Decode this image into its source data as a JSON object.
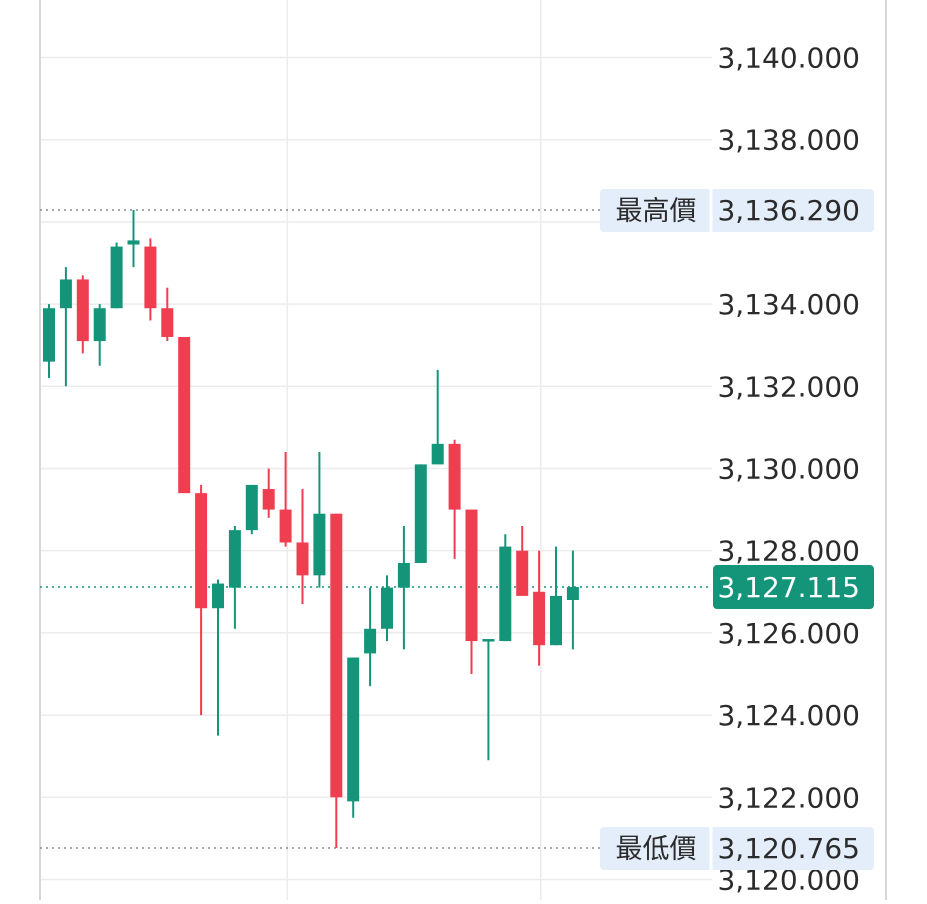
{
  "chart_data": {
    "type": "candlestick",
    "y_axis_side": "right",
    "grid": true,
    "ylim": [
      3119.5,
      3141.4
    ],
    "y_ticks": [
      3140,
      3138,
      3134,
      3132,
      3130,
      3128,
      3126,
      3124,
      3122,
      3120
    ],
    "y_tick_labels": [
      "3,140.000",
      "3,138.000",
      "3,134.000",
      "3,132.000",
      "3,130.000",
      "3,128.000",
      "3,126.000",
      "3,124.000",
      "3,122.000",
      "3,120.000"
    ],
    "high_marker": {
      "label": "最高價",
      "value": 3136.29,
      "value_text": "3,136.290"
    },
    "low_marker": {
      "label": "最低價",
      "value": 3120.765,
      "value_text": "3,120.765"
    },
    "last_price": {
      "value": 3127.115,
      "value_text": "3,127.115"
    },
    "colors": {
      "up": "#14957a",
      "down": "#ef3e4f",
      "grid": "#ececec",
      "axis": "#d6d6d6",
      "marker_bg": "#e4eefb",
      "last_bg": "#14957a"
    },
    "candles": [
      {
        "open": 3132.6,
        "high": 3134.0,
        "low": 3132.2,
        "close": 3133.9
      },
      {
        "open": 3133.9,
        "high": 3134.9,
        "low": 3132.0,
        "close": 3134.6
      },
      {
        "open": 3134.6,
        "high": 3134.7,
        "low": 3132.8,
        "close": 3133.1
      },
      {
        "open": 3133.1,
        "high": 3134.0,
        "low": 3132.5,
        "close": 3133.9
      },
      {
        "open": 3133.9,
        "high": 3135.5,
        "low": 3133.9,
        "close": 3135.4
      },
      {
        "open": 3135.45,
        "high": 3136.29,
        "low": 3134.9,
        "close": 3135.55
      },
      {
        "open": 3135.4,
        "high": 3135.6,
        "low": 3133.6,
        "close": 3133.9
      },
      {
        "open": 3133.9,
        "high": 3134.4,
        "low": 3133.1,
        "close": 3133.2
      },
      {
        "open": 3133.2,
        "high": 3133.2,
        "low": 3129.4,
        "close": 3129.4
      },
      {
        "open": 3129.4,
        "high": 3129.6,
        "low": 3124.0,
        "close": 3126.6
      },
      {
        "open": 3126.6,
        "high": 3127.3,
        "low": 3123.5,
        "close": 3127.2
      },
      {
        "open": 3127.1,
        "high": 3128.6,
        "low": 3126.1,
        "close": 3128.5
      },
      {
        "open": 3128.5,
        "high": 3129.6,
        "low": 3128.4,
        "close": 3129.6
      },
      {
        "open": 3129.5,
        "high": 3130.0,
        "low": 3128.8,
        "close": 3129.0
      },
      {
        "open": 3129.0,
        "high": 3130.4,
        "low": 3128.1,
        "close": 3128.2
      },
      {
        "open": 3128.2,
        "high": 3129.5,
        "low": 3126.7,
        "close": 3127.4
      },
      {
        "open": 3127.4,
        "high": 3130.4,
        "low": 3127.1,
        "close": 3128.9
      },
      {
        "open": 3128.9,
        "high": 3128.9,
        "low": 3120.765,
        "close": 3122.0
      },
      {
        "open": 3121.9,
        "high": 3125.4,
        "low": 3121.5,
        "close": 3125.4
      },
      {
        "open": 3125.5,
        "high": 3127.1,
        "low": 3124.7,
        "close": 3126.1
      },
      {
        "open": 3126.1,
        "high": 3127.4,
        "low": 3125.8,
        "close": 3127.1
      },
      {
        "open": 3127.1,
        "high": 3128.6,
        "low": 3125.6,
        "close": 3127.7
      },
      {
        "open": 3127.7,
        "high": 3130.1,
        "low": 3127.7,
        "close": 3130.1
      },
      {
        "open": 3130.1,
        "high": 3132.4,
        "low": 3130.1,
        "close": 3130.6
      },
      {
        "open": 3130.6,
        "high": 3130.7,
        "low": 3127.8,
        "close": 3129.0
      },
      {
        "open": 3129.0,
        "high": 3129.0,
        "low": 3125.0,
        "close": 3125.8
      },
      {
        "open": 3125.8,
        "high": 3125.8,
        "low": 3122.9,
        "close": 3125.85
      },
      {
        "open": 3125.8,
        "high": 3128.4,
        "low": 3125.8,
        "close": 3128.1
      },
      {
        "open": 3128.0,
        "high": 3128.6,
        "low": 3126.9,
        "close": 3126.9
      },
      {
        "open": 3127.0,
        "high": 3128.0,
        "low": 3125.2,
        "close": 3125.7
      },
      {
        "open": 3125.7,
        "high": 3128.1,
        "low": 3125.7,
        "close": 3126.9
      },
      {
        "open": 3126.8,
        "high": 3128.0,
        "low": 3125.6,
        "close": 3127.115
      }
    ]
  }
}
